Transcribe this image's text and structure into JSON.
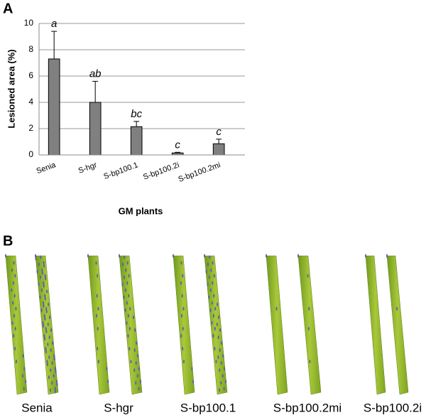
{
  "chart_data": {
    "type": "bar",
    "panel_label": "A",
    "categories": [
      "Senia",
      "S-hgr",
      "S-bp100.1",
      "S-bp100.2i",
      "S-bp100.2mi"
    ],
    "values": [
      7.3,
      4.0,
      2.15,
      0.15,
      0.85
    ],
    "errors": [
      2.1,
      1.6,
      0.4,
      0.05,
      0.35
    ],
    "annotations": [
      "a",
      "ab",
      "bc",
      "c",
      "c"
    ],
    "color": "#808080",
    "x_label": "GM plants",
    "y_label": "Lesioned area (%)",
    "ylim": [
      0,
      10
    ],
    "yticks": [
      0,
      2,
      4,
      6,
      8,
      10
    ],
    "grid": true
  },
  "photo_panel": {
    "panel_label": "B",
    "labels": [
      "Senia",
      "S-hgr",
      "S-bp100.1",
      "S-bp100.2mi",
      "S-bp100.2i"
    ]
  }
}
